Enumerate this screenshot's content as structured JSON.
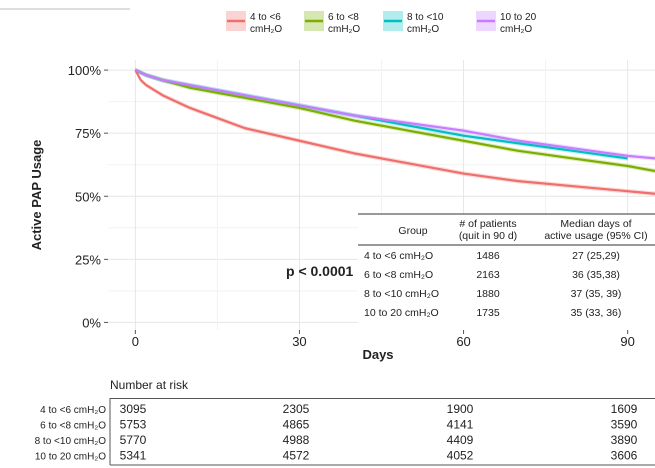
{
  "chart_data": {
    "type": "line",
    "title": "",
    "xlabel": "Days",
    "ylabel": "Active PAP Usage",
    "xlim": [
      -5,
      95
    ],
    "ylim": [
      -3,
      104
    ],
    "xticks": [
      0,
      30,
      60,
      90
    ],
    "xtick_labels": [
      "0",
      "30",
      "60",
      "90"
    ],
    "yticks": [
      0,
      25,
      50,
      75,
      100
    ],
    "ytick_labels": [
      "0%",
      "25%",
      "50%",
      "75%",
      "100%"
    ],
    "grid": true,
    "legend_position": "top",
    "legend": [
      {
        "key": "g1",
        "line1": "4 to <6",
        "line2": "cmH₂O",
        "color": "#ef6f6c"
      },
      {
        "key": "g2",
        "line1": "6 to <8",
        "line2": "cmH₂O",
        "color": "#7cae00"
      },
      {
        "key": "g3",
        "line1": "8 to <10",
        "line2": "cmH₂O",
        "color": "#00bfc4"
      },
      {
        "key": "g4",
        "line1": "10 to 20",
        "line2": "cmH₂O",
        "color": "#c77cff"
      }
    ],
    "series": [
      {
        "key": "g1",
        "color": "#ef6f6c",
        "x": [
          0,
          1,
          2,
          5,
          10,
          15,
          20,
          30,
          40,
          50,
          60,
          70,
          80,
          90,
          95
        ],
        "y": [
          100,
          96,
          94,
          90,
          85,
          81,
          77,
          72,
          67,
          63,
          59,
          56,
          54,
          52,
          51
        ]
      },
      {
        "key": "g2",
        "color": "#7cae00",
        "x": [
          0,
          1,
          2,
          5,
          10,
          15,
          20,
          30,
          40,
          50,
          60,
          70,
          80,
          90,
          95
        ],
        "y": [
          100,
          99,
          98,
          96,
          93,
          91,
          89,
          85,
          80,
          76,
          72,
          68,
          65,
          62,
          60
        ]
      },
      {
        "key": "g3",
        "color": "#00bfc4",
        "x": [
          0,
          1,
          2,
          5,
          10,
          15,
          20,
          30,
          40,
          50,
          60,
          70,
          80,
          90
        ],
        "y": [
          100,
          99,
          98,
          96,
          94,
          92,
          90,
          86,
          82,
          78,
          74,
          71,
          68,
          65
        ]
      },
      {
        "key": "g4",
        "color": "#c77cff",
        "x": [
          0,
          1,
          2,
          5,
          10,
          15,
          20,
          30,
          40,
          50,
          60,
          70,
          80,
          90,
          95
        ],
        "y": [
          100,
          99,
          98,
          96,
          94,
          92,
          90,
          86,
          82,
          79,
          76,
          72,
          69,
          66,
          65
        ]
      }
    ],
    "annotation": "p < 0.0001"
  },
  "summary_table": {
    "headers": [
      [
        "Group"
      ],
      [
        "# of patients",
        "(quit in 90 d)"
      ],
      [
        "Median days of",
        "active usage (95% CI)"
      ]
    ],
    "rows": [
      {
        "group": "4 to <6 cmH₂O",
        "patients": "1486",
        "median": "27 (25,29)"
      },
      {
        "group": "6 to <8 cmH₂O",
        "patients": "2163",
        "median": "36 (35,38)"
      },
      {
        "group": "8 to <10 cmH₂O",
        "patients": "1880",
        "median": "37 (35, 39)"
      },
      {
        "group": "10 to 20 cmH₂O",
        "patients": "1735",
        "median": "35 (33, 36)"
      }
    ]
  },
  "risk_table": {
    "title": "Number at risk",
    "days": [
      0,
      30,
      60,
      90
    ],
    "rows": [
      {
        "label": "4 to <6 cmH₂O",
        "values": [
          "3095",
          "2305",
          "1900",
          "1609"
        ]
      },
      {
        "label": "6 to <8 cmH₂O",
        "values": [
          "5753",
          "4865",
          "4141",
          "3590"
        ]
      },
      {
        "label": "8 to <10 cmH₂O",
        "values": [
          "5770",
          "4988",
          "4409",
          "3890"
        ]
      },
      {
        "label": "10 to 20 cmH₂O",
        "values": [
          "5341",
          "4572",
          "4052",
          "3606"
        ]
      }
    ]
  }
}
